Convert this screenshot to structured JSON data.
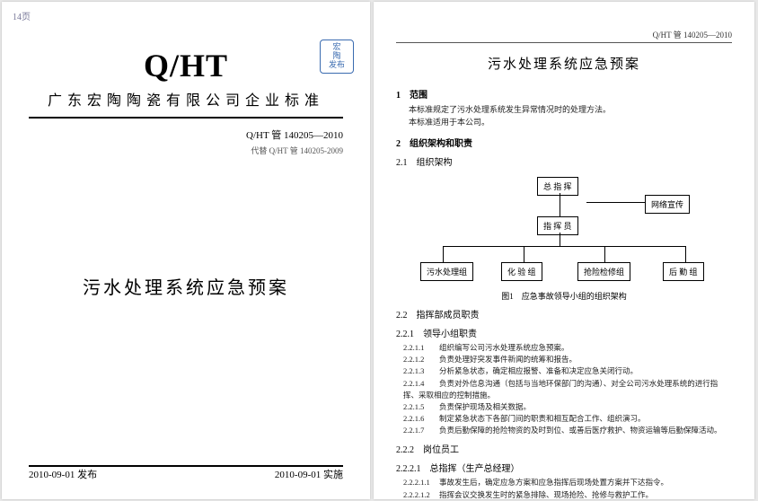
{
  "left": {
    "tag": "14页",
    "logo": "Q/HT",
    "stamp_l1": "宏",
    "stamp_l2": "陶",
    "stamp_l3": "发布",
    "company": "广东宏陶陶瓷有限公司企业标准",
    "doc_no": "Q/HT 管 140205—2010",
    "doc_no_sub": "代替 Q/HT 管 140205-2009",
    "title": "污水处理系统应急预案",
    "issue": "2010-09-01 发布",
    "effective": "2010-09-01 实施"
  },
  "right": {
    "hdr": "Q/HT 管 140205—2010",
    "title": "污水处理系统应急预案",
    "s1_h": "1　范围",
    "s1_t1": "本标准规定了污水处理系统发生异常情况时的处理方法。",
    "s1_t2": "本标准适用于本公司。",
    "s2_h": "2　组织架构和职责",
    "s21_h": "2.1　组织架构",
    "org": {
      "top": "总 指 挥",
      "side": "网络宣传",
      "mid": "指 挥 员",
      "b1": "污水处理组",
      "b2": "化 验 组",
      "b3": "抢险检修组",
      "b4": "后 勤 组"
    },
    "caption": "图1　应急事故领导小组的组织架构",
    "s22_h": "2.2　指挥部成员职责",
    "s221_h": "2.2.1　领导小组职责",
    "items221": [
      {
        "n": "2.2.1.1",
        "t": "组织编写公司污水处理系统应急预案。"
      },
      {
        "n": "2.2.1.2",
        "t": "负责处理好突发事件新闻的统筹和报告。"
      },
      {
        "n": "2.2.1.3",
        "t": "分析紧急状态，确定相应报警、准备和决定应急关闭行动。"
      },
      {
        "n": "2.2.1.4",
        "t": "负责对外信息沟通（包括与当地环保部门的沟通）、对全公司污水处理系统的进行指挥、采取相应的控制措施。"
      },
      {
        "n": "2.2.1.5",
        "t": "负责保护现场及相关数据。"
      },
      {
        "n": "2.2.1.6",
        "t": "制定紧急状态下各部门间的职责和相互配合工作、组织演习。"
      },
      {
        "n": "2.2.1.7",
        "t": "负责后勤保障的抢险物资的及时到位、或善后医疗救护、物资运输等后勤保障活动。"
      }
    ],
    "s222_h": "2.2.2　岗位员工",
    "s2221_h": "2.2.2.1　总指挥（生产总经理）",
    "items2221": [
      {
        "n": "2.2.2.1.1",
        "t": "事故发生后，确定应急方案和应急指挥后现场处置方案并下达指令。"
      },
      {
        "n": "2.2.2.1.2",
        "t": "指挥会议交换发生时的紧急排除、现场抢险、抢修与救护工作。"
      }
    ]
  }
}
